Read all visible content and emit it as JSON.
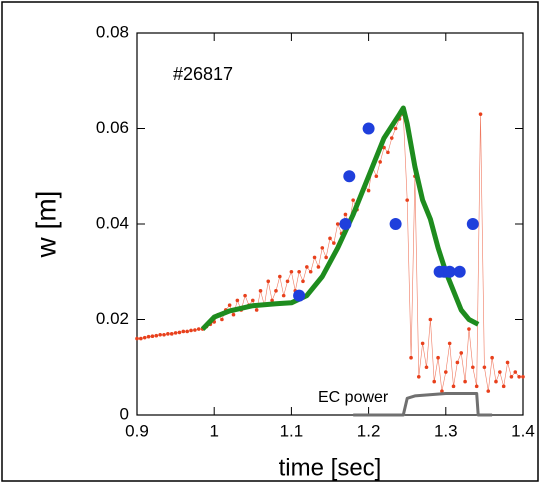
{
  "chart_data": {
    "type": "line",
    "xlabel": "time  [sec]",
    "ylabel": "w  [m]",
    "annotations": [
      "#26817",
      "EC power"
    ],
    "xlim": [
      0.9,
      1.4
    ],
    "ylim": [
      0,
      0.08
    ],
    "xticks": [
      0.9,
      1,
      1.1,
      1.2,
      1.3,
      1.4
    ],
    "yticks": [
      0,
      0.02,
      0.04,
      0.06,
      0.08
    ],
    "series": [
      {
        "kind": "dots-line",
        "color": "#e8401c",
        "x": [
          0.9,
          0.905,
          0.91,
          0.915,
          0.92,
          0.925,
          0.93,
          0.935,
          0.94,
          0.945,
          0.95,
          0.955,
          0.96,
          0.965,
          0.97,
          0.975,
          0.98,
          0.985,
          0.99,
          0.995,
          1.0,
          1.005,
          1.01,
          1.015,
          1.02,
          1.025,
          1.03,
          1.035,
          1.04,
          1.045,
          1.05,
          1.055,
          1.06,
          1.065,
          1.07,
          1.075,
          1.08,
          1.085,
          1.09,
          1.095,
          1.1,
          1.105,
          1.11,
          1.115,
          1.12,
          1.125,
          1.13,
          1.135,
          1.14,
          1.145,
          1.15,
          1.155,
          1.16,
          1.165,
          1.17,
          1.175,
          1.18,
          1.185,
          1.19,
          1.195,
          1.2,
          1.205,
          1.21,
          1.215,
          1.22,
          1.225,
          1.23,
          1.235,
          1.24,
          1.245,
          1.25,
          1.255,
          1.26,
          1.265,
          1.27,
          1.275,
          1.28,
          1.285,
          1.29,
          1.295,
          1.3,
          1.305,
          1.31,
          1.315,
          1.32,
          1.325,
          1.33,
          1.335,
          1.34,
          1.345,
          1.35,
          1.355,
          1.36,
          1.365,
          1.37,
          1.375,
          1.38,
          1.385,
          1.39,
          1.395,
          1.4
        ],
        "values": [
          0.016,
          0.016,
          0.0162,
          0.0164,
          0.0165,
          0.0166,
          0.0168,
          0.0168,
          0.017,
          0.017,
          0.0172,
          0.0173,
          0.0175,
          0.0175,
          0.0177,
          0.0178,
          0.018,
          0.018,
          0.0185,
          0.019,
          0.0195,
          0.021,
          0.02,
          0.022,
          0.023,
          0.021,
          0.024,
          0.022,
          0.025,
          0.023,
          0.024,
          0.022,
          0.026,
          0.023,
          0.028,
          0.024,
          0.026,
          0.029,
          0.025,
          0.028,
          0.03,
          0.026,
          0.03,
          0.028,
          0.031,
          0.03,
          0.033,
          0.031,
          0.035,
          0.033,
          0.037,
          0.036,
          0.04,
          0.038,
          0.042,
          0.04,
          0.045,
          0.043,
          0.046,
          0.048,
          0.047,
          0.052,
          0.05,
          0.053,
          0.056,
          0.055,
          0.058,
          0.06,
          0.062,
          0.063,
          0.045,
          0.012,
          0.05,
          0.008,
          0.015,
          0.01,
          0.02,
          0.007,
          0.012,
          0.005,
          0.009,
          0.015,
          0.006,
          0.011,
          0.013,
          0.007,
          0.018,
          0.01,
          0.006,
          0.063,
          0.01,
          0.005,
          0.012,
          0.007,
          0.009,
          0.006,
          0.011,
          0.008,
          0.009,
          0.008,
          0.008
        ]
      },
      {
        "kind": "line",
        "color": "#1e8c1e",
        "x": [
          0.985,
          1.0,
          1.02,
          1.05,
          1.08,
          1.1,
          1.12,
          1.14,
          1.16,
          1.18,
          1.2,
          1.22,
          1.24,
          1.245,
          1.25,
          1.26,
          1.27,
          1.28,
          1.29,
          1.3,
          1.31,
          1.32,
          1.33,
          1.342
        ],
        "values": [
          0.018,
          0.0205,
          0.0218,
          0.0229,
          0.0233,
          0.0235,
          0.025,
          0.029,
          0.035,
          0.042,
          0.05,
          0.058,
          0.063,
          0.0643,
          0.061,
          0.052,
          0.045,
          0.041,
          0.035,
          0.03,
          0.026,
          0.022,
          0.02,
          0.019
        ]
      },
      {
        "kind": "scatter",
        "color": "#1f3fdc",
        "x": [
          1.11,
          1.17,
          1.175,
          1.2,
          1.235,
          1.292,
          1.298,
          1.305,
          1.318,
          1.335
        ],
        "values": [
          0.025,
          0.04,
          0.05,
          0.06,
          0.04,
          0.03,
          0.03,
          0.03,
          0.03,
          0.04
        ]
      },
      {
        "kind": "line",
        "color": "#707070",
        "x": [
          1.18,
          1.245,
          1.25,
          1.26,
          1.3,
          1.34,
          1.342,
          1.36
        ],
        "values": [
          0,
          0,
          0.0035,
          0.004,
          0.0045,
          0.0045,
          0,
          0
        ]
      }
    ]
  }
}
